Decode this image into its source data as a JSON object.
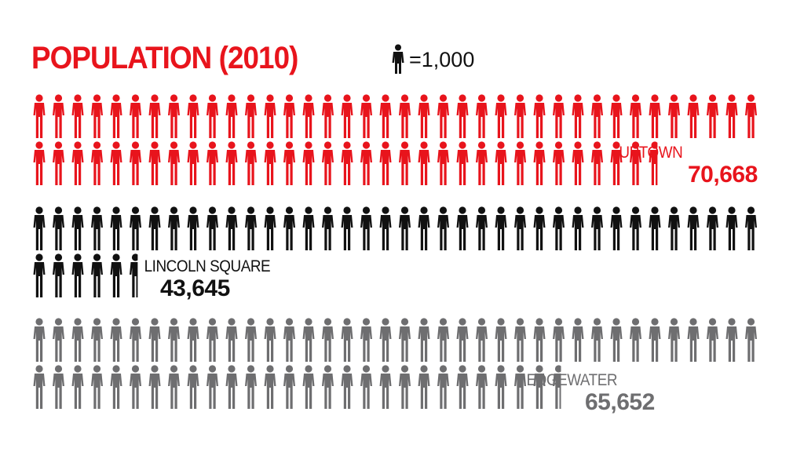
{
  "title": "POPULATION (2010)",
  "legend_text": "=1,000",
  "chart_data": {
    "type": "bar",
    "unit_per_icon": 1000,
    "categories": [
      "UPTOWN",
      "LINCOLN SQUARE",
      "EDGEWATER"
    ],
    "values": [
      70668,
      43645,
      65652
    ],
    "value_labels": [
      "70,668",
      "43,645",
      "65,652"
    ],
    "colors": [
      "#e8141c",
      "#111111",
      "#6e6e70"
    ]
  }
}
